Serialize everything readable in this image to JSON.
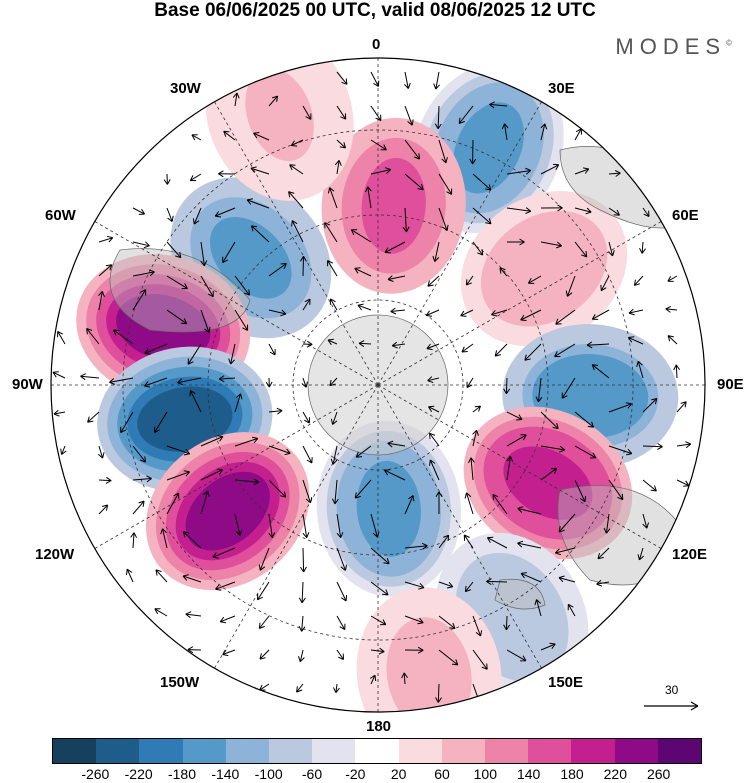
{
  "title": "Base 06/06/2025 00 UTC, valid 08/06/2025 12 UTC",
  "brand": "MODES",
  "brand_mark": "©",
  "longitude_labels": {
    "top": "0",
    "e30": "30E",
    "e60": "60E",
    "e90": "90E",
    "e120": "120E",
    "e150": "150E",
    "bottom": "180",
    "w150": "150W",
    "w120": "120W",
    "w90": "90W",
    "w60": "60W",
    "w30": "30W"
  },
  "vector_reference": "30",
  "colorbar": {
    "colors": [
      "#15405e",
      "#1e5c8c",
      "#2e7bb5",
      "#5599c9",
      "#8eb3d8",
      "#bac8e0",
      "#e3e3ef",
      "#ffffff",
      "#fadbdf",
      "#f5b3c1",
      "#ed83a8",
      "#df4f9c",
      "#c41f8f",
      "#8f0a86",
      "#5d0573"
    ],
    "ticks": [
      "-260",
      "-220",
      "-180",
      "-140",
      "-100",
      "-60",
      "-20",
      "20",
      "60",
      "100",
      "140",
      "180",
      "220",
      "260"
    ]
  },
  "anomaly_centers": [
    {
      "lon": 25,
      "colat": 0.8,
      "value": -150
    },
    {
      "lon": 5,
      "colat": 0.55,
      "value": 150
    },
    {
      "lon": 55,
      "colat": 0.62,
      "value": 90
    },
    {
      "lon": -45,
      "colat": 0.55,
      "value": -160
    },
    {
      "lon": -75,
      "colat": 0.68,
      "value": 230
    },
    {
      "lon": -100,
      "colat": 0.6,
      "value": -230
    },
    {
      "lon": -130,
      "colat": 0.6,
      "value": 230
    },
    {
      "lon": 93,
      "colat": 0.65,
      "value": -180
    },
    {
      "lon": 120,
      "colat": 0.6,
      "value": 200
    },
    {
      "lon": 175,
      "colat": 0.38,
      "value": -150
    },
    {
      "lon": 150,
      "colat": 0.82,
      "value": -100
    },
    {
      "lon": 170,
      "colat": 0.9,
      "value": 80
    },
    {
      "lon": -20,
      "colat": 0.88,
      "value": 60
    }
  ]
}
